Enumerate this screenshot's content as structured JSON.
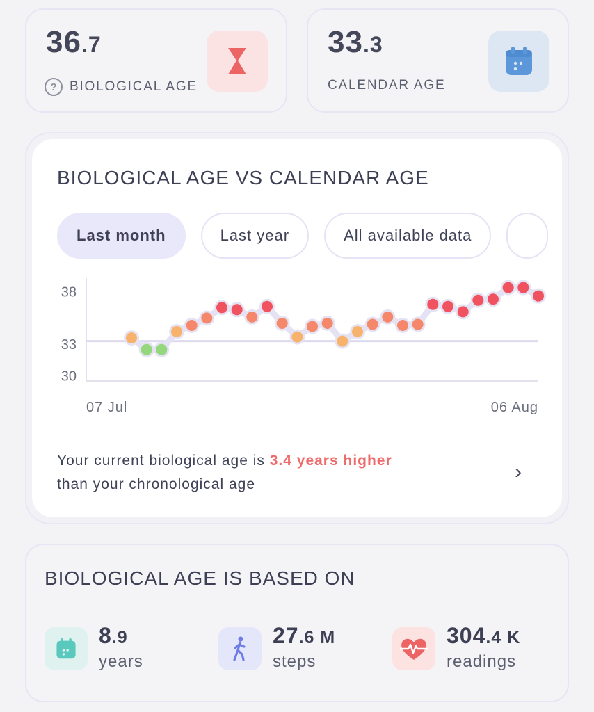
{
  "bio_card": {
    "value_int": "36",
    "value_dec": ".7",
    "label": "BIOLOGICAL AGE",
    "help_glyph": "?",
    "icon": "hourglass-icon",
    "tile_color": "#fbe3e4",
    "icon_color": "#ec6464"
  },
  "cal_card": {
    "value_int": "33",
    "value_dec": ".3",
    "label": "CALENDAR AGE",
    "icon": "calendar-icon",
    "tile_color": "#dde7f3",
    "icon_color": "#5b97d9"
  },
  "chart_card": {
    "title": "BIOLOGICAL AGE VS CALENDAR AGE",
    "tabs": [
      {
        "label": "Last month",
        "active": true
      },
      {
        "label": "Last year",
        "active": false
      },
      {
        "label": "All available data",
        "active": false
      }
    ],
    "message_pre": "Your current biological age is ",
    "message_highlight": "3.4 years higher",
    "message_post": "than your chronological age",
    "chevron": "›"
  },
  "chart_data": {
    "type": "scatter",
    "x_labels": [
      "07 Jul",
      "06 Aug"
    ],
    "yticks": [
      30,
      33,
      38
    ],
    "ylim": [
      29.5,
      39.3
    ],
    "xlim": [
      0,
      30
    ],
    "calendar_age": 33.3,
    "points_start_day": 3,
    "biological_age": [
      33.6,
      32.5,
      32.5,
      34.2,
      34.8,
      35.5,
      36.5,
      36.3,
      35.6,
      36.6,
      35.0,
      33.7,
      34.7,
      35.0,
      33.3,
      34.2,
      34.9,
      35.6,
      34.8,
      34.9,
      36.8,
      36.6,
      36.1,
      37.2,
      37.3,
      38.4,
      38.4,
      37.6
    ],
    "colors": {
      "green": "#95d77c",
      "orange": "#f7b26b",
      "coral": "#f5876a",
      "red": "#f0535f",
      "halo": "#e5e3f3",
      "baseline": "#dcdaee",
      "axis": "#e3e2ec"
    }
  },
  "based_on": {
    "title": "BIOLOGICAL AGE IS BASED ON",
    "metrics": [
      {
        "int": "8",
        "dec": ".9",
        "suffix": "",
        "unit": "years",
        "icon": "calendar-icon",
        "tile_color": "#dff2f0",
        "icon_color": "#5ac9bd"
      },
      {
        "int": "27",
        "dec": ".6",
        "suffix": " M",
        "unit": "steps",
        "icon": "walking-icon",
        "tile_color": "#e4e6fa",
        "icon_color": "#6f7ce6"
      },
      {
        "int": "304",
        "dec": ".4",
        "suffix": " K",
        "unit": "readings",
        "icon": "heart-rate-icon",
        "tile_color": "#fde2e2",
        "icon_color": "#ec6464"
      }
    ]
  }
}
